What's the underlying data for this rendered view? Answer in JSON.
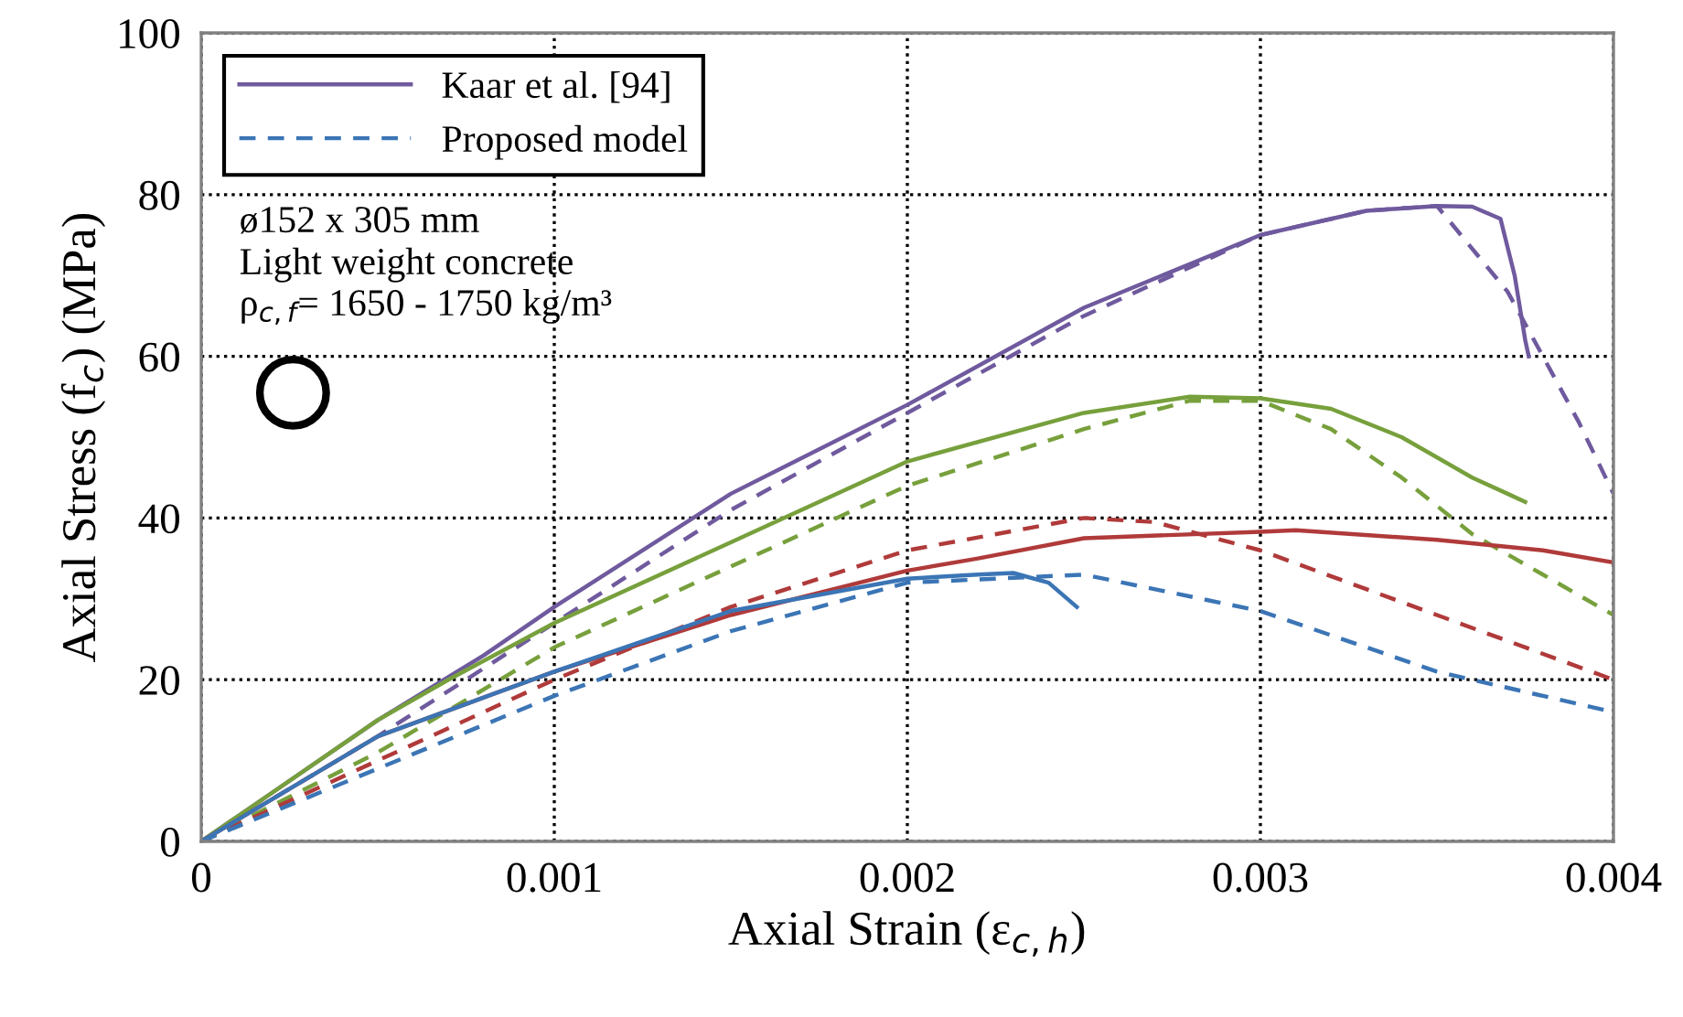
{
  "chart_data": {
    "type": "line",
    "xlabel": "Axial Strain (ε$_{c,h}$)",
    "ylabel": "Axial Stress (f$_{c}$) (MPa)",
    "xlim": [
      0,
      0.004
    ],
    "ylim": [
      0,
      100
    ],
    "xticks": [
      0,
      {
        "value": 0.001,
        "label": "0.001"
      },
      {
        "value": 0.002,
        "label": "0.002"
      },
      {
        "value": 0.003,
        "label": "0.003"
      },
      {
        "value": 0.004,
        "label": "0.004"
      }
    ],
    "yticks": [
      0,
      20,
      40,
      60,
      80,
      100
    ],
    "grid": true,
    "legend": "top left",
    "marker": "none",
    "annotations": [
      "ø152 x 305 mm",
      "Light weight concrete",
      "ρ$_{c,f}$= 1650 - 1750 kg/m³"
    ],
    "series": [
      {
        "name": "Kaar et al. [94]",
        "color": "#6f5a9e",
        "line_style": "solid",
        "x": [
          0,
          0.0002,
          0.0005,
          0.0008,
          0.001,
          0.0015,
          0.002,
          0.0025,
          0.003,
          0.0033,
          0.0035,
          0.0036,
          0.00368,
          0.00372,
          0.00375,
          0.00376
        ],
        "values": [
          0,
          6,
          15,
          23,
          29,
          43,
          54,
          66,
          75,
          78,
          78.6,
          78.5,
          77,
          70,
          62,
          60
        ]
      },
      {
        "color": "#6f5a9e",
        "line_style": "dashed",
        "x": [
          0,
          0.0005,
          0.001,
          0.0015,
          0.002,
          0.0025,
          0.003,
          0.0033,
          0.0035,
          0.0037,
          0.0038,
          0.0039,
          0.004
        ],
        "values": [
          0,
          13,
          27,
          41,
          53,
          65,
          75,
          78,
          78.6,
          68,
          60,
          52,
          43
        ]
      },
      {
        "color": "#77a03c",
        "line_style": "solid",
        "x": [
          0,
          0.0002,
          0.0005,
          0.0007,
          0.001,
          0.0015,
          0.002,
          0.0025,
          0.0028,
          0.003,
          0.0032,
          0.0034,
          0.0036,
          0.0037,
          0.00375
        ],
        "values": [
          0,
          6,
          15,
          20,
          27,
          37,
          47,
          53,
          55,
          54.8,
          53.5,
          50,
          45,
          43,
          42
        ]
      },
      {
        "color": "#77a03c",
        "line_style": "dashed",
        "x": [
          0,
          0.0005,
          0.001,
          0.0015,
          0.002,
          0.0025,
          0.0028,
          0.003,
          0.0032,
          0.0034,
          0.0036,
          0.0038,
          0.004
        ],
        "values": [
          0,
          11,
          24,
          34,
          44,
          51,
          54.5,
          54.5,
          51,
          45,
          38,
          33,
          28
        ]
      },
      {
        "color": "#b03a3a",
        "line_style": "solid",
        "x": [
          0,
          0.0005,
          0.001,
          0.0015,
          0.002,
          0.0022,
          0.0025,
          0.003,
          0.0031,
          0.0035,
          0.0038,
          0.004
        ],
        "values": [
          0,
          13,
          21,
          28,
          33.5,
          35,
          37.5,
          38.3,
          38.5,
          37.3,
          36,
          34.5
        ]
      },
      {
        "color": "#b03a3a",
        "line_style": "dashed",
        "x": [
          0,
          0.0005,
          0.001,
          0.0015,
          0.002,
          0.0025,
          0.0027,
          0.003,
          0.0035,
          0.004
        ],
        "values": [
          0,
          10,
          20,
          29,
          36,
          40,
          39.5,
          36,
          28,
          20
        ]
      },
      {
        "color": "#3b75b5",
        "line_style": "solid",
        "x": [
          0,
          0.0005,
          0.001,
          0.0015,
          0.002,
          0.0022,
          0.0023,
          0.0024,
          0.00248
        ],
        "values": [
          0,
          13,
          21,
          28.5,
          32.5,
          33,
          33.2,
          32,
          29
        ]
      },
      {
        "name": "Proposed model",
        "color": "#3b75b5",
        "line_style": "dashed",
        "x": [
          0,
          0.0005,
          0.001,
          0.0015,
          0.002,
          0.0025,
          0.003,
          0.0035,
          0.004
        ],
        "values": [
          0,
          9,
          18,
          26,
          32,
          33,
          28.5,
          21,
          16
        ]
      }
    ]
  }
}
